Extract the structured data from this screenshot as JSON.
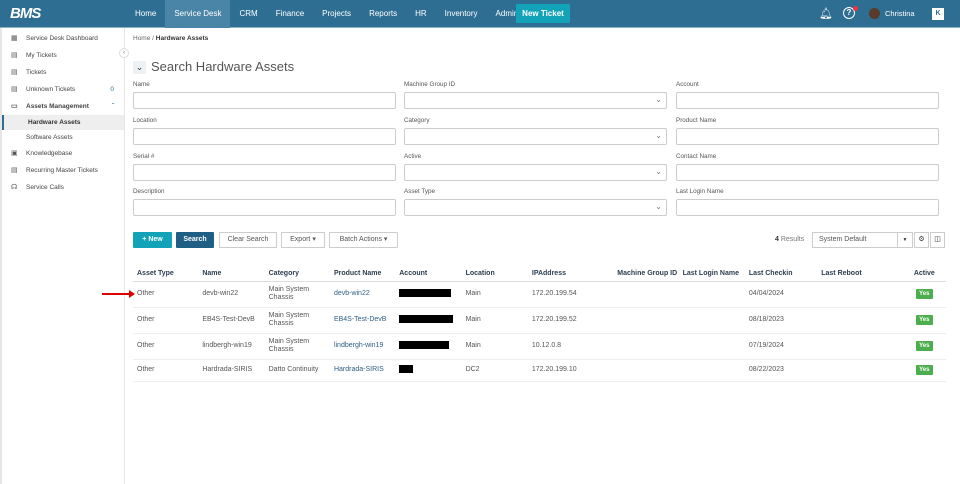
{
  "app": {
    "logo": "BMS",
    "nav": [
      "Home",
      "Service Desk",
      "CRM",
      "Finance",
      "Projects",
      "Reports",
      "HR",
      "Inventory",
      "Admin"
    ],
    "active_nav": "Service Desk",
    "new_ticket": "New Ticket",
    "user": "Christina",
    "accent": "#2e6e93"
  },
  "sidebar": {
    "items": [
      {
        "label": "Service Desk Dashboard",
        "icon": "dashboard-icon"
      },
      {
        "label": "My Tickets",
        "icon": "ticket-icon"
      },
      {
        "label": "Tickets",
        "icon": "ticket-icon"
      },
      {
        "label": "Unknown Tickets",
        "icon": "ticket-icon",
        "count": "0"
      },
      {
        "label": "Assets Management",
        "icon": "devices-icon"
      },
      {
        "label": "Hardware Assets",
        "sub": true,
        "active": true
      },
      {
        "label": "Software Assets",
        "sub": true
      },
      {
        "label": "Knowledgebase",
        "icon": "book-icon"
      },
      {
        "label": "Recurring Master Tickets",
        "icon": "ticket-icon"
      },
      {
        "label": "Service Calls",
        "icon": "headset-icon"
      }
    ]
  },
  "breadcrumb": {
    "home": "Home",
    "sep": "/",
    "current": "Hardware Assets"
  },
  "search": {
    "title": "Search Hardware Assets",
    "fields": [
      {
        "label": "Name"
      },
      {
        "label": "Machine Group ID",
        "dropdown": true
      },
      {
        "label": "Account"
      },
      {
        "label": "Location"
      },
      {
        "label": "Category",
        "dropdown": true
      },
      {
        "label": "Product Name"
      },
      {
        "label": "Serial #"
      },
      {
        "label": "Active",
        "dropdown": true
      },
      {
        "label": "Contact Name"
      },
      {
        "label": "Description"
      },
      {
        "label": "Asset Type",
        "dropdown": true
      },
      {
        "label": "Last Login Name"
      }
    ]
  },
  "toolbar": {
    "new": "+ New",
    "search": "Search",
    "clear": "Clear Search",
    "export": "Export ▾",
    "batch": "Batch Actions ▾",
    "results_count": "4",
    "results_label": "Results",
    "view": "System Default"
  },
  "table": {
    "headers": [
      "Asset Type",
      "Name",
      "Category",
      "Product Name",
      "Account",
      "Location",
      "IPAddress",
      "Machine Group ID",
      "Last Login Name",
      "Last Checkin",
      "Last Reboot",
      "Active"
    ],
    "rows": [
      [
        "Other",
        "devb-win22",
        "Main System Chassis",
        "devb-win22",
        "",
        "Main",
        "172.20.199.54",
        "",
        "",
        "04/04/2024",
        "",
        "Yes"
      ],
      [
        "Other",
        "EB4S-Test-DevB",
        "Main System Chassis",
        "EB4S-Test-DevB",
        "",
        "Main",
        "172.20.199.52",
        "",
        "",
        "08/18/2023",
        "",
        "Yes"
      ],
      [
        "Other",
        "lindbergh-win19",
        "Main System Chassis",
        "lindbergh-win19",
        "",
        "Main",
        "10.12.0.8",
        "",
        "",
        "07/19/2024",
        "",
        "Yes"
      ],
      [
        "Other",
        "Hardrada-SIRIS",
        "Datto Continuity",
        "Hardrada-SIRIS",
        "",
        "DC2",
        "172.20.199.10",
        "",
        "",
        "08/22/2023",
        "",
        "Yes"
      ]
    ]
  }
}
